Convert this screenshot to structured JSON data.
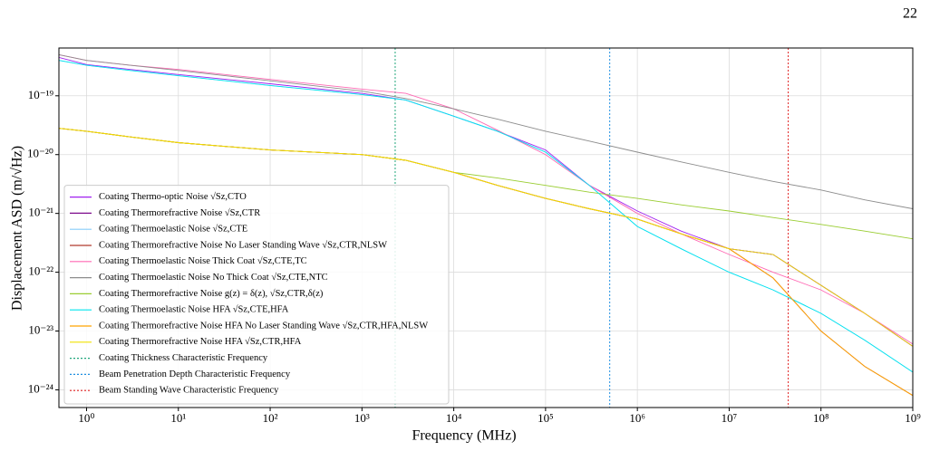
{
  "page_number": "22",
  "chart_data": {
    "type": "line",
    "x_label": "Frequency (MHz)",
    "y_label": "Displacement ASD (m/√Hz)",
    "log_x": true,
    "log_y": true,
    "grid": true,
    "legend": "lower left",
    "xlim": [
      0.5,
      1000000000
    ],
    "ylim": [
      5e-25,
      6.5e-19
    ],
    "xticks": [
      {
        "value": 1,
        "label": "10⁰"
      },
      {
        "value": 10,
        "label": "10¹"
      },
      {
        "value": 100,
        "label": "10²"
      },
      {
        "value": 1000,
        "label": "10³"
      },
      {
        "value": 10000,
        "label": "10⁴"
      },
      {
        "value": 100000,
        "label": "10⁵"
      },
      {
        "value": 1000000,
        "label": "10⁶"
      },
      {
        "value": 10000000,
        "label": "10⁷"
      },
      {
        "value": 100000000,
        "label": "10⁸"
      },
      {
        "value": 1000000000,
        "label": "10⁹"
      }
    ],
    "yticks": [
      {
        "value": 1e-24,
        "label": "10⁻²⁴"
      },
      {
        "value": 1e-23,
        "label": "10⁻²³"
      },
      {
        "value": 1e-22,
        "label": "10⁻²²"
      },
      {
        "value": 1e-21,
        "label": "10⁻²¹"
      },
      {
        "value": 1e-20,
        "label": "10⁻²⁰"
      },
      {
        "value": 1e-19,
        "label": "10⁻¹⁹"
      }
    ],
    "x": [
      0.5,
      1,
      3,
      10,
      100,
      1000,
      3000,
      10000,
      30000,
      100000,
      300000,
      1000000,
      3000000,
      10000000,
      30000000,
      100000000,
      300000000,
      1000000000
    ],
    "series": [
      {
        "name": "Coating Thermo-optic Noise √Sz,CTO",
        "color": "#a020f0",
        "values": [
          4.5e-19,
          3.4e-19,
          2.8e-19,
          2.3e-19,
          1.6e-19,
          1.1e-19,
          8.5e-20,
          4.5e-20,
          2.5e-20,
          1.2e-20,
          3e-21,
          1.1e-21,
          5e-22,
          2.5e-22,
          2e-22,
          6e-23,
          2e-23,
          5.5e-24
        ]
      },
      {
        "name": "Coating Thermorefractive Noise √Sz,CTR",
        "color": "#7d0a8c",
        "values": [
          2.8e-20,
          2.5e-20,
          2e-20,
          1.6e-20,
          1.2e-20,
          1e-20,
          8e-21,
          5e-21,
          3e-21,
          1.8e-21,
          1.2e-21,
          8e-22,
          4.5e-22,
          2.5e-22,
          2e-22,
          6e-23,
          2e-23,
          5.5e-24
        ]
      },
      {
        "name": "Coating Thermoelastic Noise √Sz,CTE",
        "color": "#87cefa",
        "values": [
          4e-19,
          3.3e-19,
          2.7e-19,
          2.2e-19,
          1.5e-19,
          1.05e-19,
          8.5e-20,
          4.5e-20,
          2.5e-20,
          1.1e-20,
          3e-21,
          6e-22,
          2.5e-22,
          1e-22,
          5e-23,
          2e-23,
          7e-24,
          2e-24
        ]
      },
      {
        "name": "Coating Thermorefractive Noise No Laser Standing Wave √Sz,CTR,NLSW",
        "color": "#b03a2e",
        "values": [
          2.8e-20,
          2.5e-20,
          2e-20,
          1.6e-20,
          1.2e-20,
          1e-20,
          8e-21,
          5e-21,
          3e-21,
          1.8e-21,
          1.2e-21,
          8e-22,
          4.5e-22,
          2.5e-22,
          8e-23,
          1e-23,
          2.5e-24,
          8e-25
        ]
      },
      {
        "name": "Coating Thermoelastic Noise Thick Coat √Sz,CTE,TC",
        "color": "#ff69b4",
        "values": [
          5e-19,
          4e-19,
          3.3e-19,
          2.8e-19,
          1.9e-19,
          1.3e-19,
          1.1e-19,
          6e-20,
          2.6e-20,
          1e-20,
          3e-21,
          1e-21,
          4.5e-22,
          2e-22,
          1e-22,
          5e-23,
          2e-23,
          6e-24
        ]
      },
      {
        "name": "Coating Thermoelastic Noise No Thick Coat √Sz,CTE,NTC",
        "color": "#8c8c8c",
        "values": [
          5e-19,
          4e-19,
          3.3e-19,
          2.7e-19,
          1.8e-19,
          1.2e-19,
          9e-20,
          6e-20,
          4e-20,
          2.5e-20,
          1.7e-20,
          1.1e-20,
          7.5e-21,
          5e-21,
          3.5e-21,
          2.5e-21,
          1.7e-21,
          1.2e-21
        ]
      },
      {
        "name": "Coating Thermorefractive Noise g(z) = δ(z), √Sz,CTR,δ(z)",
        "color": "#9acd32",
        "values": [
          2.8e-20,
          2.5e-20,
          2e-20,
          1.6e-20,
          1.2e-20,
          1e-20,
          8e-21,
          5e-21,
          4e-21,
          3e-21,
          2.3e-21,
          1.8e-21,
          1.4e-21,
          1.1e-21,
          8.5e-22,
          6.5e-22,
          5e-22,
          3.7e-22
        ]
      },
      {
        "name": "Coating Thermoelastic Noise HFA √Sz,CTE,HFA",
        "color": "#00e5ee",
        "values": [
          4e-19,
          3.3e-19,
          2.7e-19,
          2.2e-19,
          1.5e-19,
          1.05e-19,
          8.5e-20,
          4.5e-20,
          2.5e-20,
          1.1e-20,
          3e-21,
          6e-22,
          2.5e-22,
          1e-22,
          5e-23,
          2e-23,
          7e-24,
          2e-24
        ]
      },
      {
        "name": "Coating Thermorefractive Noise HFA No Laser Standing Wave √Sz,CTR,HFA,NLSW",
        "color": "#ffa500",
        "values": [
          2.8e-20,
          2.5e-20,
          2e-20,
          1.6e-20,
          1.2e-20,
          1e-20,
          8e-21,
          5e-21,
          3e-21,
          1.8e-21,
          1.2e-21,
          8e-22,
          4.5e-22,
          2.5e-22,
          8e-23,
          1e-23,
          2.5e-24,
          8e-25
        ]
      },
      {
        "name": "Coating Thermorefractive Noise HFA √Sz,CTR,HFA",
        "color": "#f0e000",
        "values": [
          2.8e-20,
          2.5e-20,
          2e-20,
          1.6e-20,
          1.2e-20,
          1e-20,
          8e-21,
          5e-21,
          3e-21,
          1.8e-21,
          1.2e-21,
          8e-22,
          4.5e-22,
          2.5e-22,
          2e-22,
          6e-23,
          2e-23,
          5.5e-24
        ]
      }
    ],
    "vlines": [
      {
        "name": "Coating Thickness Characteristic Frequency",
        "color": "#1fa67a",
        "x": 2300
      },
      {
        "name": "Beam Penetration Depth Characteristic Frequency",
        "color": "#1f8fe0",
        "x": 500000
      },
      {
        "name": "Beam Standing Wave Characteristic Frequency",
        "color": "#e02020",
        "x": 44000000
      }
    ]
  }
}
